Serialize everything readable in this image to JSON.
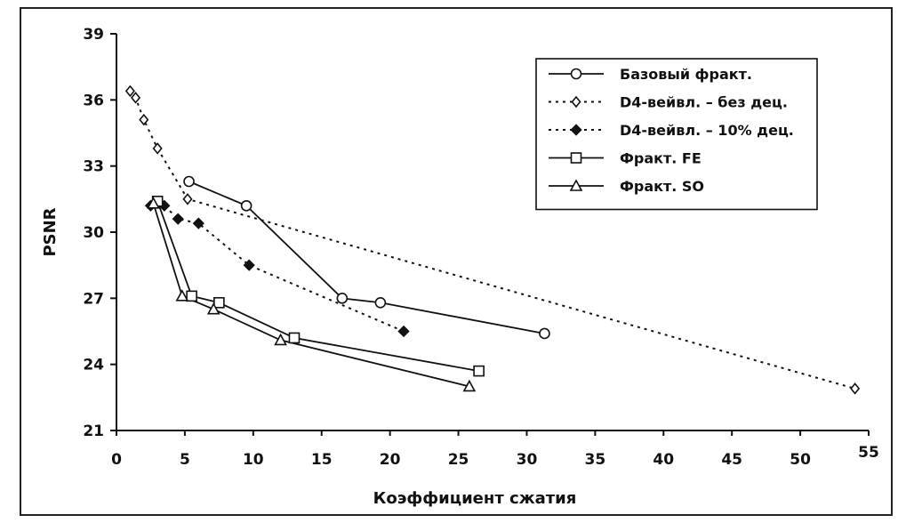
{
  "chart_data": {
    "type": "line",
    "title": "",
    "xlabel": "Коэффициент сжатия",
    "ylabel": "PSNR",
    "xlim": [
      0,
      55
    ],
    "ylim": [
      21,
      39
    ],
    "x_ticks": [
      0,
      5,
      10,
      15,
      20,
      25,
      30,
      35,
      40,
      45,
      50,
      55
    ],
    "y_ticks": [
      21,
      24,
      27,
      30,
      33,
      36,
      39
    ],
    "x_tick_labels": [
      "0",
      "5",
      "10",
      "15",
      "20",
      "25",
      "30",
      "35",
      "40",
      "45",
      "50",
      "55"
    ],
    "y_tick_labels": [
      "21",
      "24",
      "27",
      "30",
      "33",
      "36",
      "39"
    ],
    "grid": false,
    "legend_position": "top-right",
    "series": [
      {
        "name": "Базовый фракт.",
        "style": "solid",
        "marker": "circle-open",
        "color": "#111111",
        "points": [
          [
            5.3,
            32.3
          ],
          [
            9.5,
            31.2
          ],
          [
            16.5,
            27.0
          ],
          [
            19.3,
            26.8
          ],
          [
            31.3,
            25.4
          ]
        ]
      },
      {
        "name": "D4-вейвл. – без дец.",
        "style": "dotted",
        "marker": "diamond-open",
        "color": "#111111",
        "points": [
          [
            1.0,
            36.4
          ],
          [
            1.4,
            36.1
          ],
          [
            2.0,
            35.1
          ],
          [
            3.0,
            33.8
          ],
          [
            5.2,
            31.5
          ],
          [
            54.0,
            22.9
          ]
        ]
      },
      {
        "name": "D4-вейвл. – 10% дец.",
        "style": "dotted",
        "marker": "diamond-filled",
        "color": "#111111",
        "points": [
          [
            2.5,
            31.2
          ],
          [
            3.5,
            31.2
          ],
          [
            4.5,
            30.6
          ],
          [
            6.0,
            30.4
          ],
          [
            9.7,
            28.5
          ],
          [
            21.0,
            25.5
          ]
        ]
      },
      {
        "name": "Фракт. FE",
        "style": "solid",
        "marker": "square-open",
        "color": "#111111",
        "points": [
          [
            3.0,
            31.4
          ],
          [
            5.5,
            27.1
          ],
          [
            7.5,
            26.8
          ],
          [
            13.0,
            25.2
          ],
          [
            26.5,
            23.7
          ]
        ]
      },
      {
        "name": "Фракт. SO",
        "style": "solid",
        "marker": "triangle-open",
        "color": "#111111",
        "points": [
          [
            2.7,
            31.3
          ],
          [
            4.8,
            27.1
          ],
          [
            7.1,
            26.5
          ],
          [
            12.0,
            25.1
          ],
          [
            25.8,
            23.0
          ]
        ]
      }
    ]
  }
}
